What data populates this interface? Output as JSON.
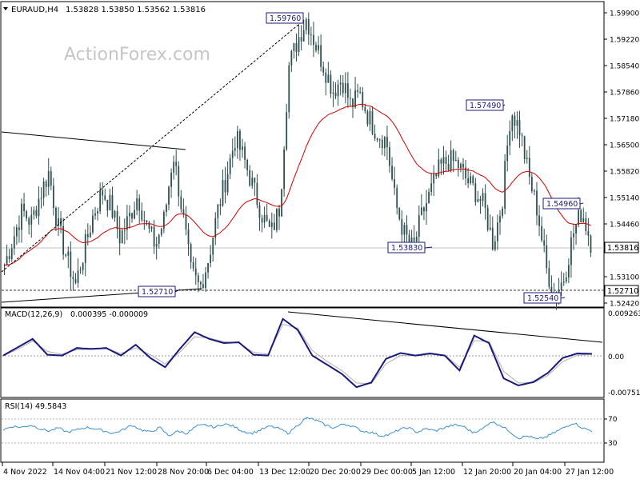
{
  "header": {
    "symbol": "EURAUD,H4",
    "ohlc": "1.53828 1.53850 1.53562 1.53816",
    "watermark": "ActionForex.com"
  },
  "colors": {
    "candle": "#2f4f4f",
    "ma": "#d40000",
    "macd": "#1a1a7a",
    "signal": "#b0b0b0",
    "rsi": "#3a8fd6",
    "trend": "#000000",
    "label_border": "#1a1a7a",
    "label_text": "#1a1a7a"
  },
  "chart_data": [
    {
      "type": "candlestick",
      "title": "EURAUD,H4",
      "ylim": [
        1.5242,
        1.599
      ],
      "price_ticks": [
        "1.59900",
        "1.59220",
        "1.58540",
        "1.57860",
        "1.57180",
        "1.56500",
        "1.55820",
        "1.55140",
        "1.54460",
        "1.53780",
        "1.53100",
        "1.52420"
      ],
      "current_price": "1.53816",
      "reference_level": "1.52710",
      "annotations": [
        {
          "label": "1.59760",
          "value": 1.5976,
          "date": "16 Dec 2022"
        },
        {
          "label": "1.57490",
          "value": 1.5749,
          "date": "18 Jan 2023"
        },
        {
          "label": "1.54960",
          "value": 1.5496,
          "date": "26 Jan 2023"
        },
        {
          "label": "1.53830",
          "value": 1.5383,
          "date": "4 Jan 2023"
        },
        {
          "label": "1.52710",
          "value": 1.5271,
          "date": "28 Nov 2022"
        },
        {
          "label": "1.52540",
          "value": 1.5254,
          "date": "25 Jan 2023"
        }
      ],
      "x_ticks": [
        "4 Nov 2022",
        "14 Nov 04:00",
        "21 Nov 12:00",
        "28 Nov 20:00",
        "6 Dec 04:00",
        "13 Dec 12:00",
        "20 Dec 20:00",
        "29 Dec 00:00",
        "5 Jan 12:00",
        "12 Jan 20:00",
        "20 Jan 04:00",
        "27 Jan 12:00"
      ],
      "close_series": [
        1.534,
        1.541,
        1.548,
        1.545,
        1.552,
        1.558,
        1.544,
        1.536,
        1.529,
        1.538,
        1.547,
        1.553,
        1.549,
        1.541,
        1.546,
        1.552,
        1.544,
        1.539,
        1.546,
        1.563,
        1.548,
        1.532,
        1.528,
        1.536,
        1.548,
        1.557,
        1.567,
        1.561,
        1.554,
        1.547,
        1.542,
        1.549,
        1.585,
        1.592,
        1.5976,
        1.591,
        1.585,
        1.579,
        1.582,
        1.575,
        1.578,
        1.572,
        1.568,
        1.566,
        1.55,
        1.542,
        1.538,
        1.547,
        1.553,
        1.559,
        1.561,
        1.56,
        1.556,
        1.553,
        1.549,
        1.5395,
        1.55,
        1.574,
        1.569,
        1.557,
        1.548,
        1.533,
        1.526,
        1.531,
        1.542,
        1.548,
        1.54
      ]
    },
    {
      "type": "line",
      "title": "MACD(12,26,9)",
      "header_values": "0.000395 -0.000009",
      "ylim": [
        -0.0095,
        0.0105
      ],
      "y_ticks": [
        "0.009263",
        "0.00",
        "-0.007517"
      ],
      "macd": [
        0.0,
        0.002,
        0.004,
        0.0002,
        0.0,
        0.0018,
        0.0016,
        0.0018,
        0.0,
        0.0026,
        -0.0006,
        -0.0028,
        0.0016,
        0.0056,
        0.004,
        0.003,
        0.0032,
        0.0002,
        0.0,
        0.0088,
        0.0062,
        0.0,
        -0.0022,
        -0.0044,
        -0.0076,
        -0.0065,
        -0.0008,
        0.0006,
        0.0,
        0.0005,
        0.0,
        -0.0036,
        0.0048,
        0.003,
        -0.0055,
        -0.0072,
        -0.0064,
        -0.0042,
        -0.0006,
        0.0005,
        0.0004
      ],
      "signal": [
        0.0,
        0.0015,
        0.0035,
        0.001,
        0.0003,
        0.0014,
        0.0015,
        0.0017,
        0.0005,
        0.0018,
        0.0002,
        -0.002,
        0.0008,
        0.0045,
        0.0042,
        0.0033,
        0.003,
        0.0008,
        0.0003,
        0.0075,
        0.0066,
        0.0012,
        -0.0014,
        -0.0036,
        -0.0066,
        -0.0068,
        -0.002,
        0.0,
        0.0,
        0.0003,
        0.0001,
        -0.0028,
        0.0036,
        0.0034,
        -0.0038,
        -0.0066,
        -0.0066,
        -0.0048,
        -0.0015,
        0.0001,
        0.0003
      ]
    },
    {
      "type": "line",
      "title": "RSI(14)",
      "header_values": "49.5843",
      "ylim": [
        0,
        100
      ],
      "y_ticks": [
        "70",
        "30"
      ],
      "reference_lines": [
        70,
        30
      ],
      "values": [
        52,
        58,
        56,
        60,
        54,
        50,
        55,
        48,
        52,
        56,
        54,
        50,
        46,
        52,
        60,
        52,
        48,
        56,
        42,
        50,
        46,
        58,
        60,
        56,
        62,
        58,
        50,
        46,
        52,
        58,
        54,
        46,
        60,
        72,
        68,
        60,
        55,
        62,
        58,
        50,
        48,
        42,
        44,
        52,
        56,
        48,
        54,
        50,
        56,
        60,
        58,
        48,
        52,
        66,
        60,
        50,
        38,
        42,
        36,
        40,
        48,
        56,
        64,
        55,
        50
      ]
    }
  ]
}
